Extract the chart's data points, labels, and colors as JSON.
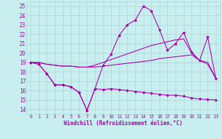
{
  "bg_color": "#c8eef0",
  "grid_color": "#b0d8d8",
  "line_color": "#aa00aa",
  "marker_color": "#aa00aa",
  "xlabel": "Windchill (Refroidissement éolien,°C)",
  "xlim": [
    -0.5,
    23.5
  ],
  "ylim": [
    13.5,
    25.5
  ],
  "yticks": [
    14,
    15,
    16,
    17,
    18,
    19,
    20,
    21,
    22,
    23,
    24,
    25
  ],
  "xticks": [
    0,
    1,
    2,
    3,
    4,
    5,
    6,
    7,
    8,
    9,
    10,
    11,
    12,
    13,
    14,
    15,
    16,
    17,
    18,
    19,
    20,
    21,
    22,
    23
  ],
  "series": [
    {
      "x": [
        0,
        1,
        2,
        3,
        4,
        5,
        6,
        7,
        8,
        9,
        10,
        11,
        12,
        13,
        14,
        15,
        16,
        17,
        18,
        19,
        20,
        21,
        22,
        23
      ],
      "y": [
        19.0,
        18.8,
        17.8,
        16.6,
        16.6,
        16.4,
        15.8,
        13.9,
        16.2,
        16.1,
        16.2,
        16.1,
        16.0,
        15.9,
        15.8,
        15.7,
        15.6,
        15.5,
        15.5,
        15.4,
        15.2,
        15.1,
        15.05,
        15.0
      ],
      "has_markers": true
    },
    {
      "x": [
        0,
        1,
        2,
        3,
        4,
        5,
        6,
        7,
        8,
        9,
        10,
        11,
        12,
        13,
        14,
        15,
        16,
        17,
        18,
        19,
        20,
        21,
        22,
        23
      ],
      "y": [
        19.0,
        19.0,
        18.8,
        18.7,
        18.6,
        18.6,
        18.5,
        18.5,
        18.5,
        18.6,
        18.7,
        18.8,
        18.9,
        19.0,
        19.1,
        19.2,
        19.4,
        19.5,
        19.6,
        19.7,
        19.8,
        19.2,
        18.8,
        17.3
      ],
      "has_markers": false
    },
    {
      "x": [
        0,
        1,
        2,
        3,
        4,
        5,
        6,
        7,
        8,
        9,
        10,
        11,
        12,
        13,
        14,
        15,
        16,
        17,
        18,
        19,
        20,
        21,
        22,
        23
      ],
      "y": [
        19.0,
        19.0,
        18.8,
        18.7,
        18.6,
        18.6,
        18.5,
        18.5,
        18.7,
        19.0,
        19.3,
        19.6,
        19.9,
        20.2,
        20.5,
        20.8,
        21.0,
        21.2,
        21.4,
        21.5,
        20.0,
        19.2,
        19.0,
        17.3
      ],
      "has_markers": false
    },
    {
      "x": [
        0,
        1,
        2,
        3,
        4,
        5,
        6,
        7,
        8,
        9,
        10,
        11,
        12,
        13,
        14,
        15,
        16,
        17,
        18,
        19,
        20,
        21,
        22,
        23
      ],
      "y": [
        19.0,
        18.8,
        17.8,
        16.6,
        16.6,
        16.4,
        15.8,
        13.9,
        16.2,
        18.7,
        19.9,
        21.9,
        23.0,
        23.5,
        25.0,
        24.5,
        22.5,
        20.3,
        21.0,
        22.2,
        20.1,
        19.2,
        21.7,
        17.3
      ],
      "has_markers": true
    }
  ]
}
